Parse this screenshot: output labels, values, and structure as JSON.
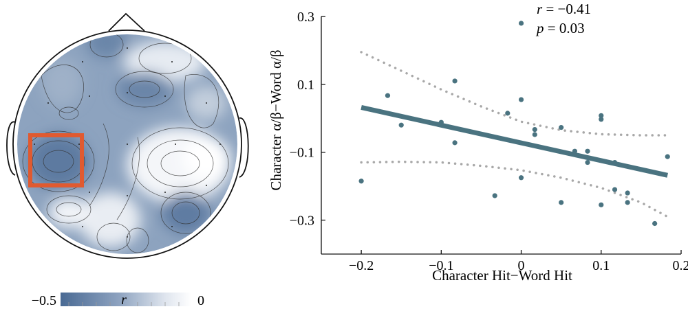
{
  "chart_data": [
    {
      "type": "heatmap",
      "title": "",
      "description_label": "scalp topography",
      "colorbar": {
        "label": "r",
        "min_label": "−0.5",
        "max_label": "0",
        "range": [
          -0.5,
          0
        ],
        "color_low": "#4a6a94",
        "color_high": "#ffffff"
      },
      "highlight_color": "#e05a30"
    },
    {
      "type": "scatter",
      "title": "",
      "xlabel": "Character Hit−Word Hit",
      "ylabel": "Character α/β−Word α/β",
      "xlim": [
        -0.25,
        0.2
      ],
      "ylim": [
        -0.4,
        0.3
      ],
      "xticks": [
        -0.2,
        -0.1,
        0,
        0.1,
        0.2
      ],
      "xtick_labels": [
        "−0.2",
        "−0.1",
        "0",
        "0.1",
        "0.2"
      ],
      "yticks": [
        -0.3,
        -0.1,
        0.1,
        0.3
      ],
      "ytick_labels": [
        "−0.3",
        "−0.1",
        "0.1",
        "0.3"
      ],
      "points": [
        {
          "x": 0.0,
          "y": 0.28
        },
        {
          "x": -0.083,
          "y": 0.11
        },
        {
          "x": -0.167,
          "y": 0.067
        },
        {
          "x": 0.0,
          "y": 0.055
        },
        {
          "x": -0.017,
          "y": 0.015
        },
        {
          "x": 0.1,
          "y": 0.008
        },
        {
          "x": 0.1,
          "y": -0.003
        },
        {
          "x": -0.1,
          "y": -0.012
        },
        {
          "x": -0.15,
          "y": -0.02
        },
        {
          "x": 0.05,
          "y": -0.027
        },
        {
          "x": 0.017,
          "y": -0.033
        },
        {
          "x": 0.017,
          "y": -0.048
        },
        {
          "x": -0.083,
          "y": -0.072
        },
        {
          "x": 0.067,
          "y": -0.097
        },
        {
          "x": 0.083,
          "y": -0.097
        },
        {
          "x": 0.183,
          "y": -0.113
        },
        {
          "x": 0.083,
          "y": -0.13
        },
        {
          "x": 0.117,
          "y": -0.13
        },
        {
          "x": 0.0,
          "y": -0.175
        },
        {
          "x": -0.2,
          "y": -0.185
        },
        {
          "x": 0.117,
          "y": -0.21
        },
        {
          "x": 0.133,
          "y": -0.22
        },
        {
          "x": -0.033,
          "y": -0.228
        },
        {
          "x": 0.05,
          "y": -0.248
        },
        {
          "x": 0.133,
          "y": -0.248
        },
        {
          "x": 0.1,
          "y": -0.255
        },
        {
          "x": 0.167,
          "y": -0.31
        }
      ],
      "fit_line": {
        "x": [
          -0.2,
          0.183
        ],
        "y": [
          0.032,
          -0.168
        ]
      },
      "ci_upper": {
        "x": [
          -0.2,
          -0.15,
          -0.1,
          -0.05,
          0.0,
          0.05,
          0.1,
          0.15,
          0.183
        ],
        "y": [
          0.195,
          0.14,
          0.085,
          0.035,
          -0.01,
          -0.035,
          -0.047,
          -0.05,
          -0.05
        ]
      },
      "ci_lower": {
        "x": [
          -0.2,
          -0.15,
          -0.1,
          -0.05,
          0.0,
          0.05,
          0.1,
          0.15,
          0.183
        ],
        "y": [
          -0.13,
          -0.128,
          -0.13,
          -0.14,
          -0.153,
          -0.175,
          -0.205,
          -0.248,
          -0.29
        ]
      },
      "point_color": "#4a7380",
      "line_color": "#4a7380",
      "ci_color": "#a8a8a8",
      "stats": {
        "r_label": "r",
        "r_value": " = −0.41",
        "p_label": "p",
        "p_value": " = 0.03"
      }
    }
  ]
}
